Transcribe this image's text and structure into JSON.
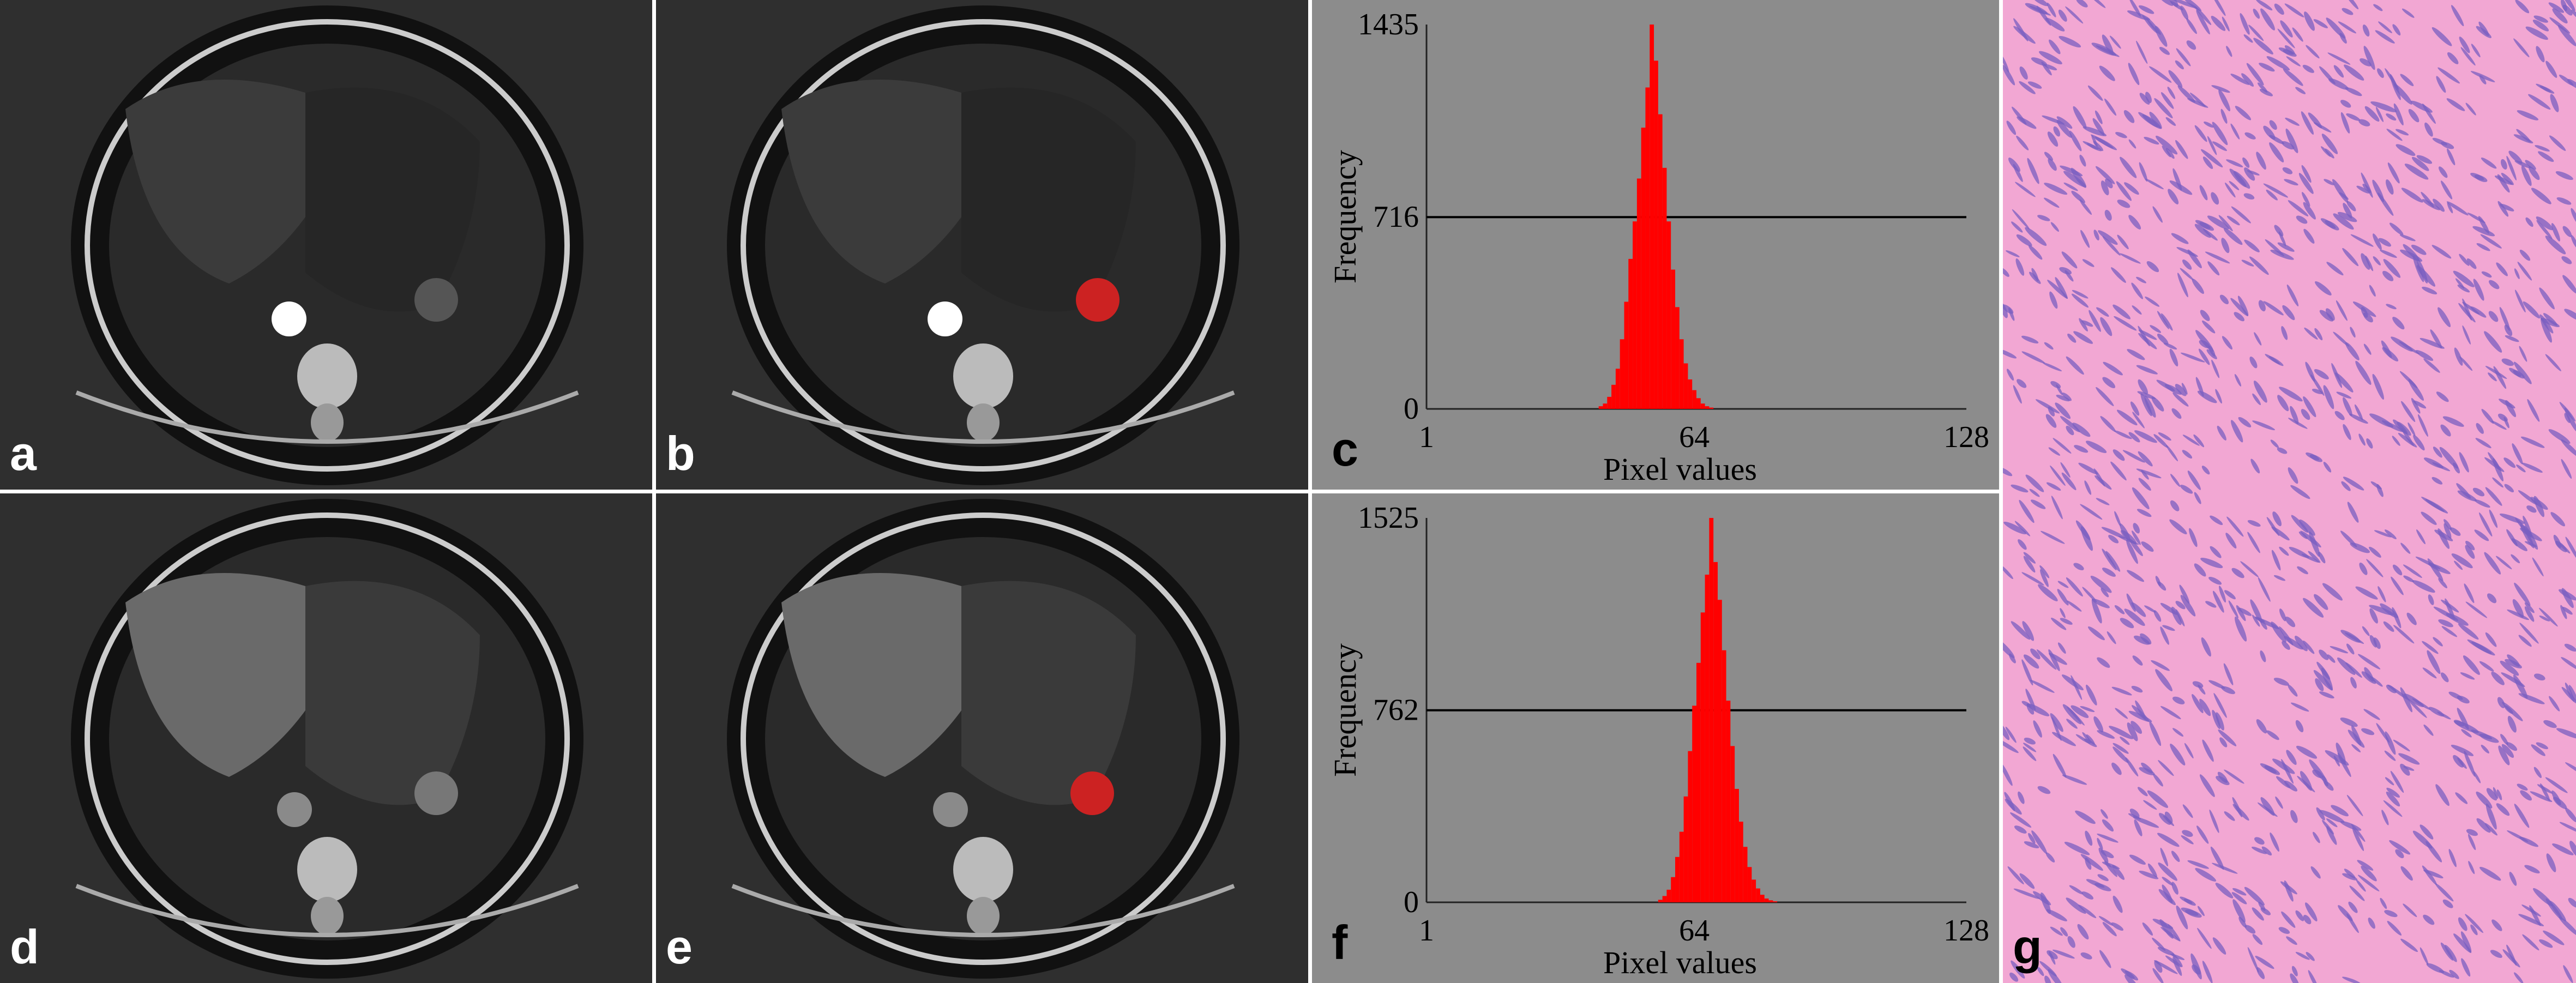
{
  "panel_labels": {
    "a": "a",
    "b": "b",
    "c": "c",
    "d": "d",
    "e": "e",
    "f": "f",
    "g": "g"
  },
  "colors": {
    "ct_background": "#2f2f2f",
    "histogram_background": "#8c8c8c",
    "histogram_bars": "#ff0000",
    "roi_overlay": "#cc2222",
    "histology_background": "#f2a7d3",
    "nuclei": "#7a5fc0"
  },
  "chart_data": [
    {
      "type": "bar",
      "panel": "c",
      "xlabel": "Pixel values",
      "ylabel": "Frequency",
      "xticks": [
        "1",
        "64",
        "128"
      ],
      "yticks": [
        "0",
        "716",
        "1435"
      ],
      "xlim": [
        1,
        128
      ],
      "ylim": [
        0,
        1435
      ],
      "reference_line": 716,
      "x": [
        42,
        43,
        44,
        45,
        46,
        47,
        48,
        49,
        50,
        51,
        52,
        53,
        54,
        55,
        56,
        57,
        58,
        59,
        60,
        61,
        62,
        63,
        64,
        65,
        66,
        67,
        68
      ],
      "values": [
        10,
        20,
        45,
        90,
        150,
        260,
        400,
        560,
        700,
        860,
        1050,
        1200,
        1435,
        1300,
        1100,
        900,
        700,
        520,
        380,
        260,
        170,
        110,
        70,
        40,
        20,
        10,
        5
      ]
    },
    {
      "type": "bar",
      "panel": "f",
      "xlabel": "Pixel values",
      "ylabel": "Frequency",
      "xticks": [
        "1",
        "64",
        "128"
      ],
      "yticks": [
        "0",
        "762",
        "1525"
      ],
      "xlim": [
        1,
        128
      ],
      "ylim": [
        0,
        1525
      ],
      "reference_line": 762,
      "x": [
        56,
        57,
        58,
        59,
        60,
        61,
        62,
        63,
        64,
        65,
        66,
        67,
        68,
        69,
        70,
        71,
        72,
        73,
        74,
        75,
        76,
        77,
        78,
        79,
        80,
        81,
        82,
        83
      ],
      "values": [
        10,
        25,
        50,
        100,
        180,
        280,
        420,
        600,
        780,
        950,
        1150,
        1300,
        1525,
        1350,
        1200,
        1000,
        800,
        620,
        450,
        320,
        220,
        140,
        90,
        55,
        30,
        15,
        8,
        4
      ]
    }
  ]
}
